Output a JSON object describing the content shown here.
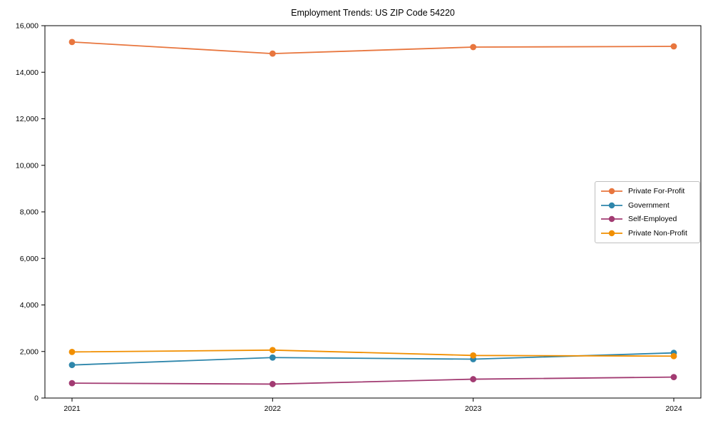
{
  "chart_data": {
    "type": "line",
    "title": "Employment Trends: US ZIP Code 54220",
    "x": [
      "2021",
      "2022",
      "2023",
      "2024"
    ],
    "series": [
      {
        "name": "Private For-Profit",
        "color": "#E8763E",
        "values": [
          15300,
          14800,
          15080,
          15110
        ]
      },
      {
        "name": "Government",
        "color": "#2E86AB",
        "values": [
          1420,
          1740,
          1670,
          1940
        ]
      },
      {
        "name": "Self-Employed",
        "color": "#A23B72",
        "values": [
          640,
          600,
          810,
          900
        ]
      },
      {
        "name": "Private Non-Profit",
        "color": "#F18F01",
        "values": [
          1980,
          2060,
          1830,
          1800
        ]
      }
    ],
    "xlabel": "",
    "ylabel": "",
    "ylim": [
      0,
      16000
    ],
    "yticks": [
      0,
      2000,
      4000,
      6000,
      8000,
      10000,
      12000,
      14000,
      16000
    ],
    "ytick_labels": [
      "0",
      "2,000",
      "4,000",
      "6,000",
      "8,000",
      "10,000",
      "12,000",
      "14,000",
      "16,000"
    ],
    "grid": false,
    "marker": "circle",
    "legend_position": "center-right",
    "frame_color": "#000000",
    "text_color": "#000000",
    "background_color": "#ffffff"
  }
}
